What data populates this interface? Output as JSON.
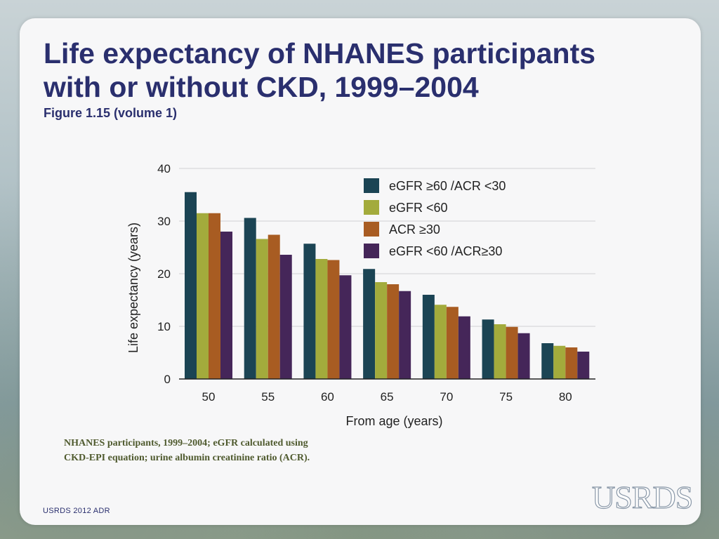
{
  "slide": {
    "title_line1": "Life expectancy of NHANES participants",
    "title_line2": "with or without CKD, 1999–2004",
    "subtitle": "Figure 1.15 (volume 1)",
    "caption_line1": "NHANES participants, 1999–2004; eGFR calculated using",
    "caption_line2": "CKD-EPI equation; urine albumin creatinine ratio (ACR).",
    "footer": "USRDS 2012 ADR",
    "logo": "USRDS"
  },
  "colors": {
    "title": "#2a2f6e",
    "caption": "#4f5a2e"
  },
  "chart_data": {
    "type": "bar",
    "title": "",
    "xlabel": "From age (years)",
    "ylabel": "Life expectancy (years)",
    "ylim": [
      0,
      40
    ],
    "yticks": [
      0,
      10,
      20,
      30,
      40
    ],
    "grid": true,
    "legend_position": "top-right",
    "categories": [
      "50",
      "55",
      "60",
      "65",
      "70",
      "75",
      "80"
    ],
    "series": [
      {
        "name": "eGFR ≥60 /ACR <30",
        "color": "#1b4454",
        "values": [
          35.5,
          30.6,
          25.7,
          20.9,
          16.0,
          11.3,
          6.8
        ]
      },
      {
        "name": "eGFR <60",
        "color": "#a3ab3c",
        "values": [
          31.5,
          26.6,
          22.8,
          18.4,
          14.1,
          10.4,
          6.3
        ]
      },
      {
        "name": "ACR ≥30",
        "color": "#a85c22",
        "values": [
          31.5,
          27.4,
          22.6,
          18.0,
          13.7,
          9.9,
          6.0
        ]
      },
      {
        "name": "eGFR <60 /ACR≥30",
        "color": "#452659",
        "values": [
          28.0,
          23.6,
          19.7,
          16.7,
          11.9,
          8.7,
          5.2
        ]
      }
    ]
  }
}
